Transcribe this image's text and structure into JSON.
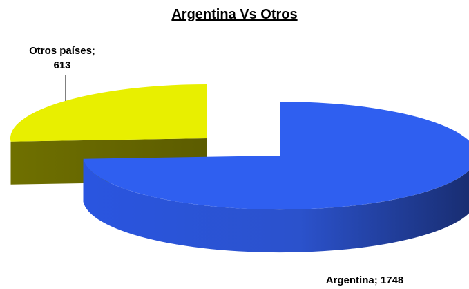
{
  "chart_data": {
    "type": "pie",
    "title": "Argentina Vs Otros",
    "three_d": true,
    "exploded": true,
    "slices": [
      {
        "name": "Argentina",
        "value": 1748,
        "color": "#2f5ff0",
        "label": "Argentina; 1748"
      },
      {
        "name": "Otros países",
        "value": 613,
        "color": "#e8ef00",
        "label_line1": "Otros países;",
        "label_line2": "613"
      }
    ]
  }
}
